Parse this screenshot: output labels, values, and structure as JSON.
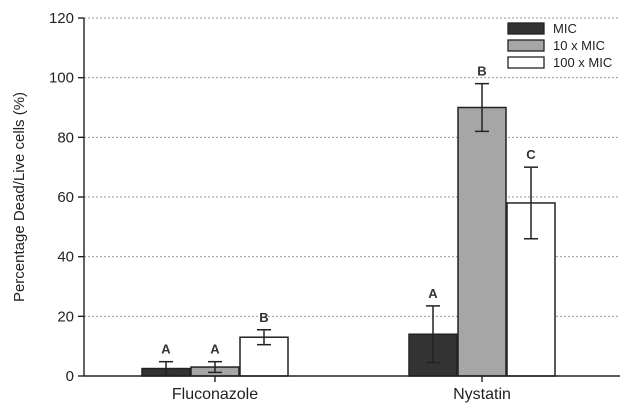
{
  "chart_data": {
    "type": "bar",
    "ylabel": "Percentage Dead/Live cells (%)",
    "ylim": [
      0,
      120
    ],
    "yticks": [
      0,
      20,
      40,
      60,
      80,
      100,
      120
    ],
    "grid": true,
    "legend_position": "top-right",
    "categories": [
      "Fluconazole",
      "Nystatin"
    ],
    "series": [
      {
        "name": "MIC",
        "color": "#333333",
        "values": [
          2.5,
          14.0
        ],
        "errors": [
          2.3,
          9.5
        ],
        "labels": [
          "A",
          "A"
        ]
      },
      {
        "name": "10 x MIC",
        "color": "#a6a6a6",
        "values": [
          3.0,
          90.0
        ],
        "errors": [
          1.8,
          8.0
        ],
        "labels": [
          "A",
          "B"
        ]
      },
      {
        "name": "100 x MIC",
        "color": "#ffffff",
        "values": [
          13.0,
          58.0
        ],
        "errors": [
          2.5,
          12.0
        ],
        "labels": [
          "B",
          "C"
        ]
      }
    ]
  }
}
